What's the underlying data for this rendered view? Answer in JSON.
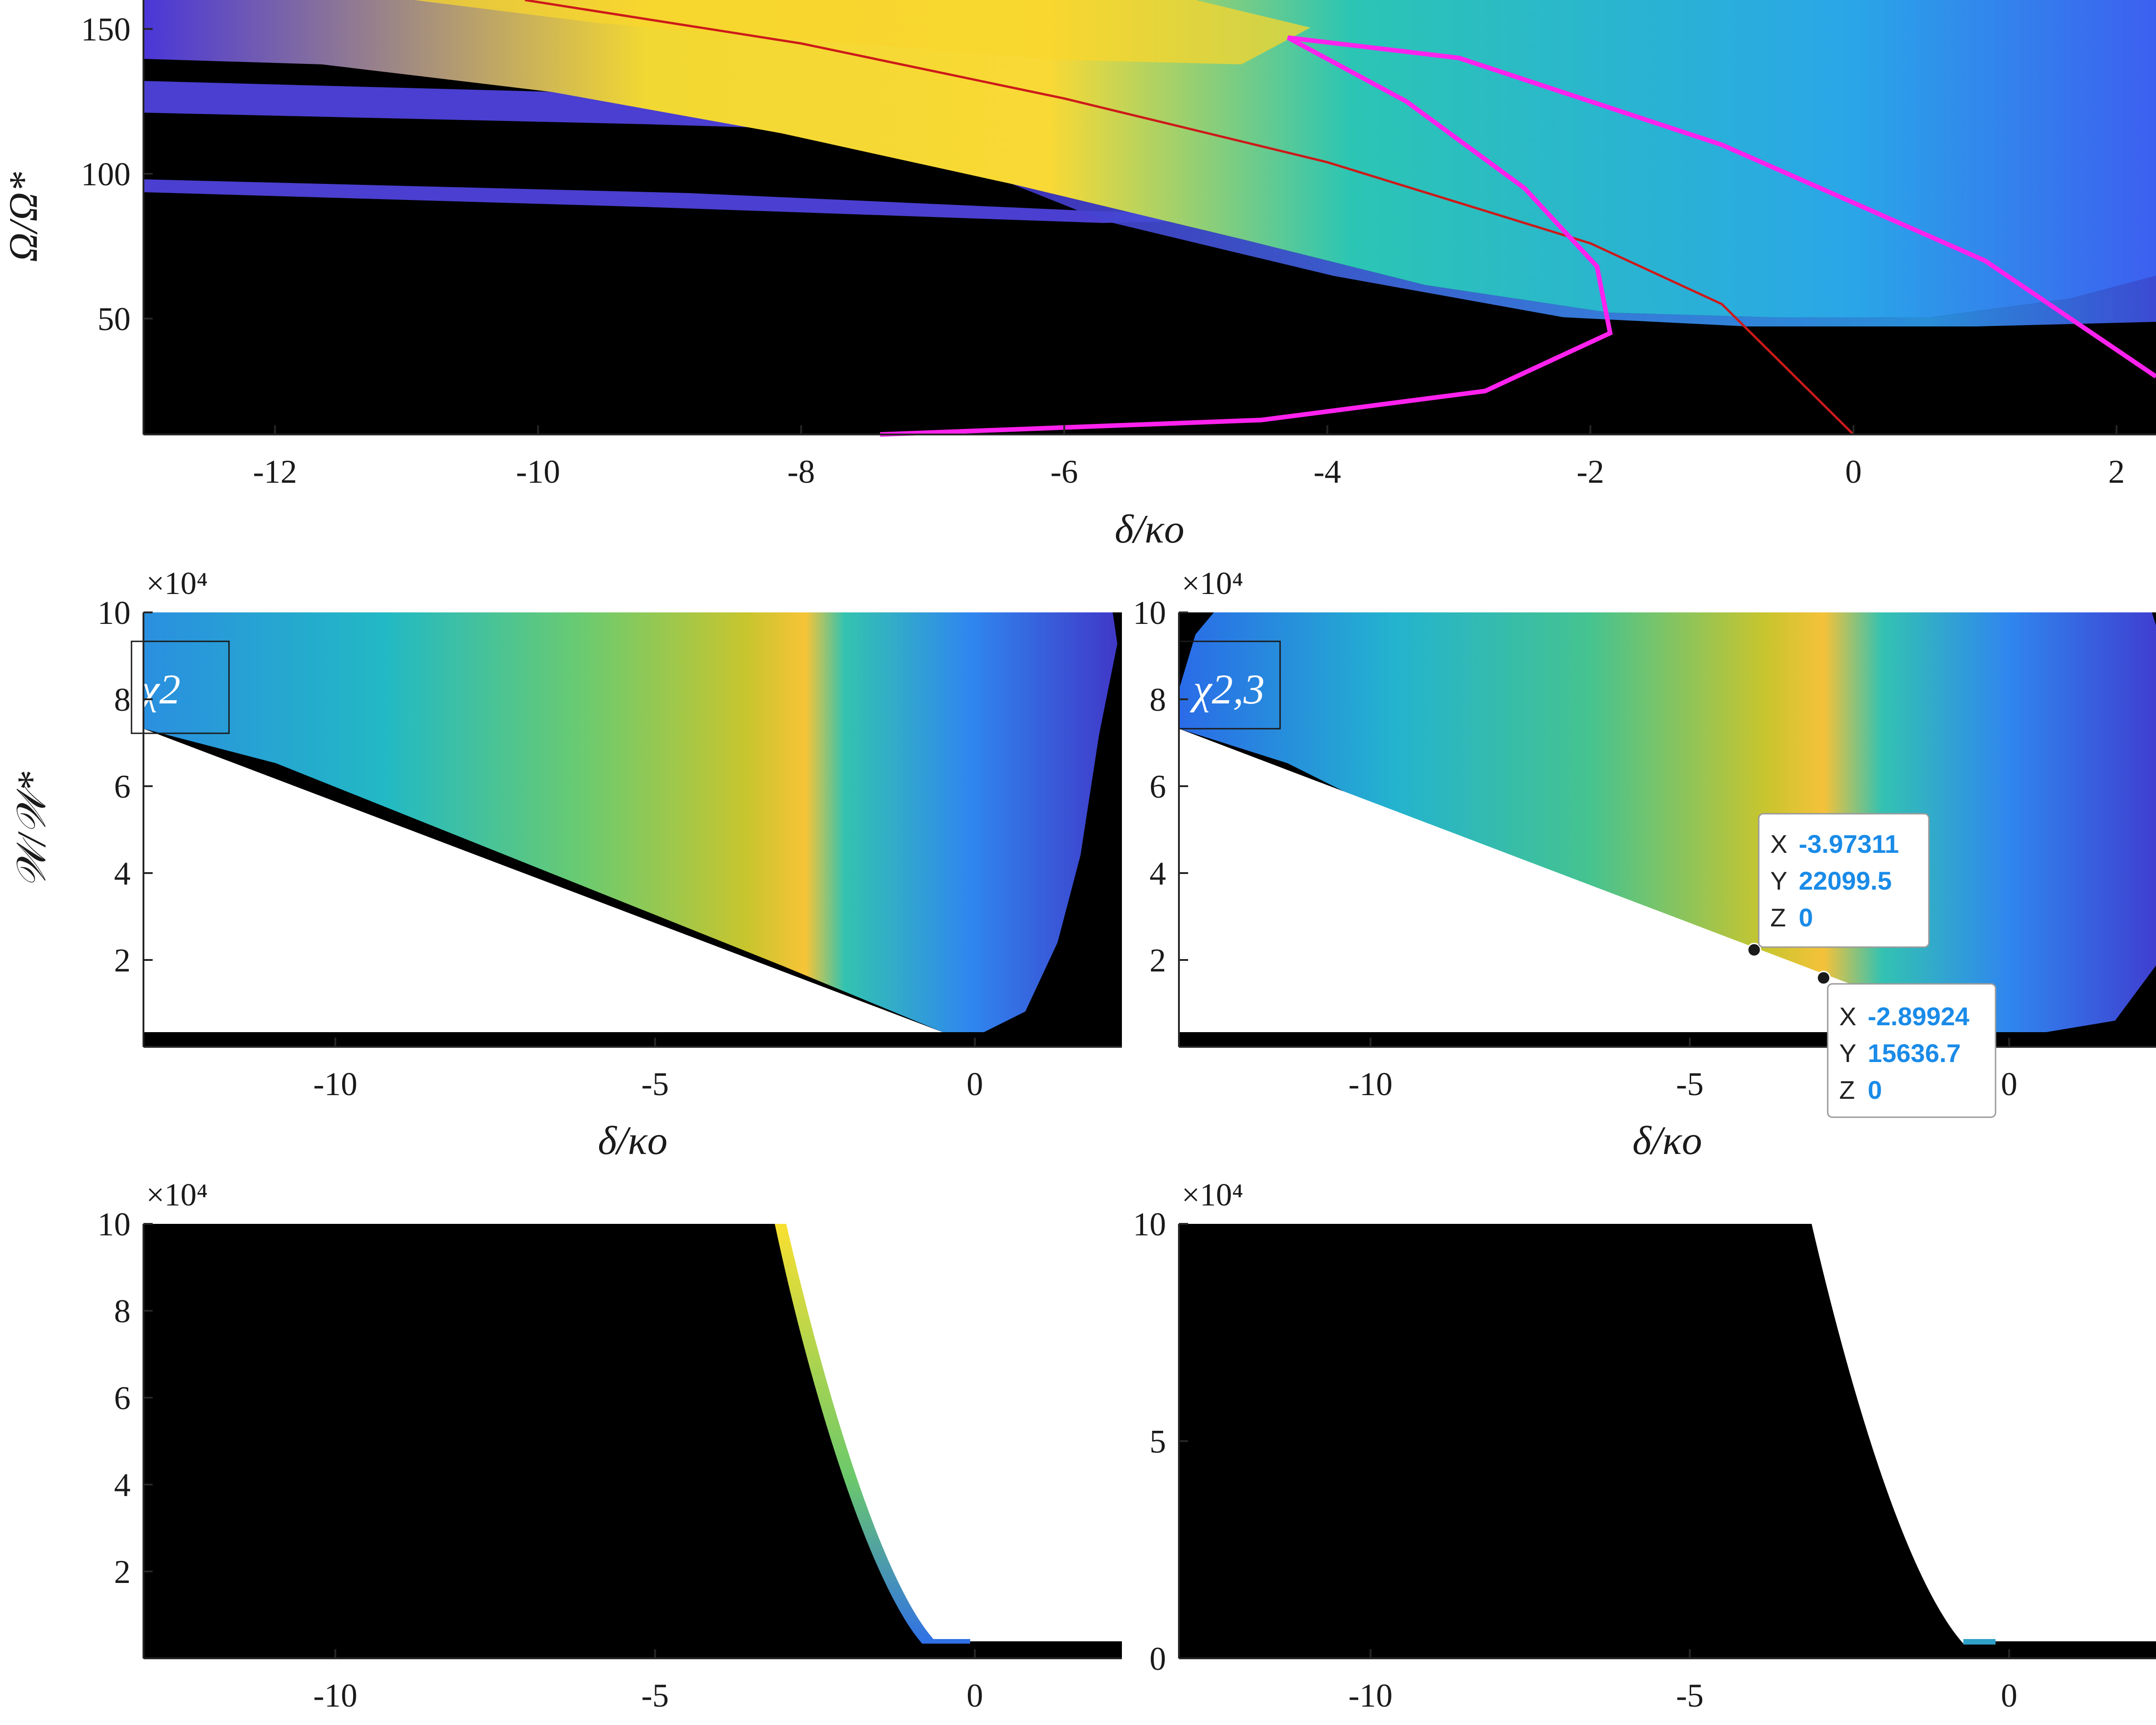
{
  "chart_data": [
    {
      "id": "top",
      "type": "heatmap",
      "xlabel": "δ/κo",
      "ylabel": "Ω/Ω*",
      "xlim": [
        -13,
        2.3
      ],
      "ylim": [
        10,
        160
      ],
      "xticks": [
        -12,
        -10,
        -8,
        -6,
        -4,
        -2,
        0,
        2
      ],
      "yticks": [
        50,
        100,
        150
      ],
      "background": "#000000",
      "curves": [
        {
          "color": "#cc1a1a",
          "x": [
            -10.1,
            -8,
            -6,
            -4,
            -2,
            -1,
            0
          ],
          "y": [
            160,
            145,
            126,
            104,
            76,
            55,
            10
          ]
        },
        {
          "color": "#ff22ee",
          "x": [
            -7.4,
            -4.5,
            -2.8,
            -1.85,
            -1.95,
            -2.5,
            -3.4,
            -4.3,
            -3.0,
            -1.0,
            1.0,
            2.3
          ],
          "y": [
            10,
            15,
            25,
            45,
            68,
            95,
            125,
            147,
            140,
            110,
            70,
            30
          ]
        }
      ]
    },
    {
      "id": "mid-left",
      "type": "heatmap",
      "panel_label": "χ2",
      "xlabel": "δ/κo",
      "ylabel": "𝒲/𝒲*",
      "multiplier": "×10⁴",
      "xlim": [
        -13,
        2.3
      ],
      "ylim": [
        0,
        10
      ],
      "xticks": [
        -10,
        -5,
        0
      ],
      "yticks": [
        2,
        4,
        6,
        8,
        10
      ],
      "background": "#000000"
    },
    {
      "id": "mid-right",
      "type": "heatmap",
      "panel_label": "χ2,3",
      "xlabel": "δ/κo",
      "multiplier": "×10⁴",
      "xlim": [
        -13,
        2.3
      ],
      "ylim": [
        0,
        10
      ],
      "xticks": [
        -10,
        -5,
        0
      ],
      "yticks": [
        2,
        4,
        6,
        8,
        10
      ],
      "background": "#000000",
      "datatips": [
        {
          "x": "-3.97311",
          "y": "22099.5",
          "z": "0"
        },
        {
          "x": "-2.89924",
          "y": "15636.7",
          "z": "0"
        }
      ]
    },
    {
      "id": "bottom-left",
      "type": "heatmap",
      "multiplier": "×10⁴",
      "xlim": [
        -13,
        2.3
      ],
      "ylim": [
        0,
        10
      ],
      "xticks": [
        -10,
        -5,
        0
      ],
      "yticks": [
        2,
        4,
        6,
        8,
        10
      ],
      "background": "#000000"
    },
    {
      "id": "bottom-right",
      "type": "heatmap",
      "multiplier": "×10⁴",
      "xlim": [
        -13,
        2.3
      ],
      "ylim": [
        0,
        10
      ],
      "xticks": [
        -10,
        -5,
        0
      ],
      "yticks": [
        0,
        5,
        10
      ],
      "background": "#000000"
    }
  ],
  "tooltip_keys": {
    "x": "X",
    "y": "Y",
    "z": "Z"
  }
}
